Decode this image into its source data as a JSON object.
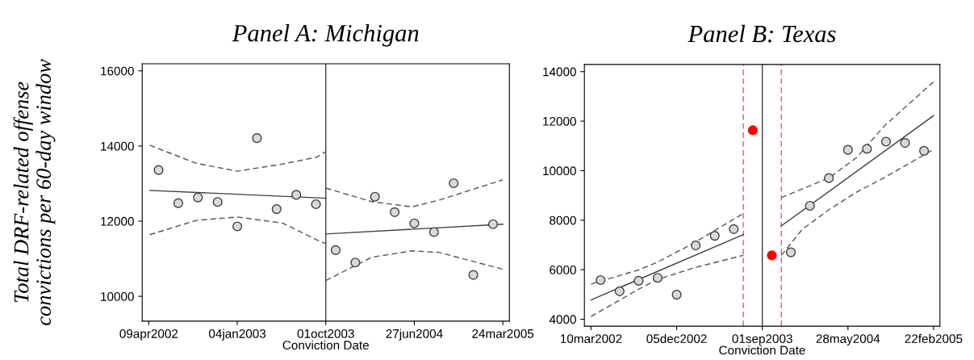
{
  "chart_data": [
    {
      "type": "scatter",
      "title": "Panel A: Michigan",
      "xlabel": "Conviction Date",
      "ylabel": "Total DRF-related offense\nconvictions per 60-day window",
      "xlim": [
        "2002-03-20",
        "2005-04-13"
      ],
      "ylim": [
        9340,
        16190
      ],
      "xticks": [
        {
          "value": "2002-04-09",
          "label": "09apr2002"
        },
        {
          "value": "2003-01-04",
          "label": "04jan2003"
        },
        {
          "value": "2003-10-01",
          "label": "01oct2003"
        },
        {
          "value": "2004-06-27",
          "label": "27jun2004"
        },
        {
          "value": "2005-03-24",
          "label": "24mar2005"
        }
      ],
      "yticks": [
        10000,
        12000,
        14000,
        16000
      ],
      "ref_lines": [
        {
          "axis": "x",
          "value": "2003-10-01",
          "color": "#404040",
          "line_style": "solid"
        }
      ],
      "series": [
        {
          "marker": "circle",
          "color": "#d9d9d9",
          "x": [
            "2002-05-09",
            "2002-07-08",
            "2002-09-06",
            "2002-11-05",
            "2003-01-04",
            "2003-03-05",
            "2003-05-04",
            "2003-07-03",
            "2003-09-01",
            "2003-10-31",
            "2003-12-30",
            "2004-02-28",
            "2004-04-28",
            "2004-06-27",
            "2004-08-26",
            "2004-10-25",
            "2004-12-24",
            "2005-02-22"
          ],
          "values": [
            13360,
            12480,
            12630,
            12510,
            11860,
            14210,
            12320,
            12700,
            12450,
            11230,
            10900,
            12650,
            12240,
            11940,
            11710,
            13010,
            10570,
            11920
          ]
        },
        {
          "type": "line",
          "color": "#404040",
          "line_style": "solid",
          "x": [
            "2002-04-12",
            "2003-10-01"
          ],
          "values": [
            12820,
            12610
          ]
        },
        {
          "type": "line",
          "color": "#404040",
          "line_style": "solid",
          "x": [
            "2003-10-01",
            "2005-03-24"
          ],
          "values": [
            11660,
            11920
          ]
        },
        {
          "type": "line",
          "color": "#555555",
          "line_style": "dashed",
          "x": [
            "2002-04-12",
            "2002-09-01",
            "2003-01-04",
            "2003-05-22",
            "2003-09-02",
            "2003-10-01"
          ],
          "values": [
            14020,
            13540,
            13330,
            13520,
            13700,
            13850
          ]
        },
        {
          "type": "line",
          "color": "#555555",
          "line_style": "dashed",
          "x": [
            "2002-04-12",
            "2002-09-01",
            "2003-01-04",
            "2003-05-22",
            "2003-09-02",
            "2003-10-01"
          ],
          "values": [
            11640,
            12020,
            12110,
            11950,
            11510,
            11400
          ]
        },
        {
          "type": "line",
          "color": "#555555",
          "line_style": "dashed",
          "x": [
            "2003-10-01",
            "2004-02-18",
            "2004-06-20",
            "2004-09-10",
            "2005-03-24"
          ],
          "values": [
            12880,
            12520,
            12380,
            12560,
            13100
          ]
        },
        {
          "type": "line",
          "color": "#555555",
          "line_style": "dashed",
          "x": [
            "2003-10-01",
            "2004-02-18",
            "2004-06-20",
            "2004-09-10",
            "2005-03-24"
          ],
          "values": [
            10420,
            11040,
            11210,
            11170,
            10720
          ]
        }
      ]
    },
    {
      "type": "scatter",
      "title": "Panel B: Texas",
      "xlabel": "Conviction Date",
      "xlim": [
        "2002-02-17",
        "2005-03-14"
      ],
      "ylim": [
        3720,
        14290
      ],
      "xticks": [
        {
          "value": "2002-03-10",
          "label": "10mar2002"
        },
        {
          "value": "2002-12-05",
          "label": "05dec2002"
        },
        {
          "value": "2003-09-01",
          "label": "01sep2003"
        },
        {
          "value": "2004-05-28",
          "label": "28may2004"
        },
        {
          "value": "2005-02-22",
          "label": "22feb2005"
        }
      ],
      "yticks": [
        4000,
        6000,
        8000,
        10000,
        12000,
        14000
      ],
      "ref_lines": [
        {
          "axis": "x",
          "value": "2003-09-01",
          "color": "#404040",
          "line_style": "solid"
        },
        {
          "axis": "x",
          "value": "2003-07-03",
          "color": "#ff5050",
          "line_style": "dashed"
        },
        {
          "axis": "x",
          "value": "2003-10-31",
          "color": "#ff5050",
          "line_style": "dashed"
        }
      ],
      "series": [
        {
          "marker": "circle",
          "color": "#d9d9d9",
          "x": [
            "2002-04-09",
            "2002-06-08",
            "2002-08-07",
            "2002-10-06",
            "2002-12-05",
            "2003-02-03",
            "2003-04-04",
            "2003-06-03",
            "2003-11-30",
            "2004-01-29",
            "2004-03-29",
            "2004-05-28",
            "2004-07-27",
            "2004-09-25",
            "2004-11-24",
            "2005-01-23"
          ],
          "values": [
            5580,
            5130,
            5550,
            5670,
            4990,
            6980,
            7370,
            7640,
            6700,
            8580,
            9700,
            10840,
            10880,
            11170,
            11120,
            10800
          ]
        },
        {
          "marker": "circle",
          "color": "#ff0000",
          "x": [
            "2003-08-02",
            "2003-10-01"
          ],
          "values": [
            11630,
            6580
          ]
        },
        {
          "type": "line",
          "color": "#404040",
          "line_style": "solid",
          "x": [
            "2002-03-10",
            "2003-07-03"
          ],
          "values": [
            4780,
            7420
          ]
        },
        {
          "type": "line",
          "color": "#404040",
          "line_style": "solid",
          "x": [
            "2003-10-31",
            "2005-02-22"
          ],
          "values": [
            7770,
            12220
          ]
        },
        {
          "type": "line",
          "color": "#555555",
          "line_style": "dashed",
          "x": [
            "2002-03-10",
            "2002-08-04",
            "2002-10-03",
            "2003-01-24",
            "2003-07-03"
          ],
          "values": [
            5420,
            5980,
            6290,
            7050,
            8270
          ]
        },
        {
          "type": "line",
          "color": "#555555",
          "line_style": "dashed",
          "x": [
            "2002-03-10",
            "2002-08-04",
            "2002-10-03",
            "2003-01-24",
            "2003-07-03"
          ],
          "values": [
            4110,
            5190,
            5590,
            6060,
            6580
          ]
        },
        {
          "type": "line",
          "color": "#555555",
          "line_style": "dashed",
          "x": [
            "2003-10-31",
            "2004-03-31",
            "2004-06-25",
            "2004-09-20",
            "2005-02-22"
          ],
          "values": [
            8910,
            9720,
            10540,
            11810,
            13590
          ]
        },
        {
          "type": "line",
          "color": "#555555",
          "line_style": "dashed",
          "x": [
            "2003-10-31",
            "2004-01-05",
            "2004-03-31",
            "2004-06-25",
            "2004-09-20",
            "2005-02-22"
          ],
          "values": [
            6580,
            7630,
            8440,
            9140,
            9720,
            10860
          ]
        }
      ]
    }
  ]
}
